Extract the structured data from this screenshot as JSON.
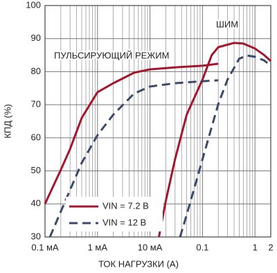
{
  "chart_data": {
    "type": "line",
    "xlabel": "ТОК НАГРУЗКИ (А)",
    "ylabel": "КПД (%)",
    "annotations": [
      "ПУЛЬСИРУЮЩИЙ РЕЖИМ",
      "ШИМ"
    ],
    "xscale": "log",
    "grid": true,
    "legend": "lower center",
    "xlim": [
      0.0001,
      2
    ],
    "ylim": [
      30,
      100
    ],
    "xticks": [
      {
        "value": 0.0001,
        "label": "0.1 мА"
      },
      {
        "value": 0.001,
        "label": "1 мА"
      },
      {
        "value": 0.01,
        "label": "10 мА"
      },
      0.1,
      1,
      2
    ],
    "yticks": [
      30,
      40,
      50,
      60,
      70,
      80,
      90,
      100
    ],
    "series": [
      {
        "name": "VIN = 7.2 В",
        "color": "#a3162c",
        "dash": false,
        "x": [
          0.0001,
          0.0002,
          0.0003,
          0.0005,
          0.001,
          0.002,
          0.005,
          0.01,
          0.03,
          0.1,
          0.2,
          null,
          0.0148,
          0.02,
          0.03,
          0.05,
          0.1,
          0.15,
          0.2,
          0.4,
          0.6,
          1,
          1.5,
          2
        ],
        "values": [
          40,
          50.3,
          56.6,
          66,
          73.8,
          76.5,
          79.7,
          80.7,
          81.3,
          81.8,
          82.4,
          null,
          30,
          40.9,
          53.5,
          67,
          77.6,
          85,
          87.4,
          88.7,
          88.5,
          87,
          85,
          83.2
        ]
      },
      {
        "name": "VIN = 12 В",
        "color": "#3b4a6b",
        "dash": true,
        "x": [
          0.000124,
          0.0002,
          0.0005,
          0.001,
          0.002,
          0.005,
          0.01,
          0.03,
          0.1,
          0.2,
          null,
          0.0374,
          0.05,
          0.1,
          0.2,
          0.3,
          0.5,
          0.7,
          1,
          1.5,
          2
        ],
        "values": [
          30,
          37.7,
          52.4,
          60.8,
          67,
          73.4,
          75.5,
          76.5,
          77.1,
          77.4,
          null,
          30,
          36.7,
          53.5,
          70.2,
          77.6,
          83.9,
          84.9,
          84.5,
          83.4,
          81.8
        ]
      }
    ]
  }
}
